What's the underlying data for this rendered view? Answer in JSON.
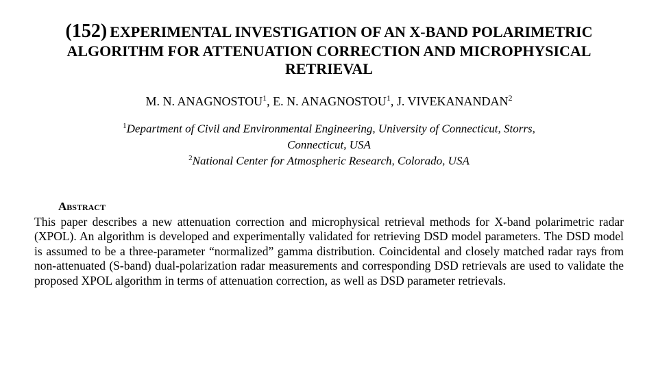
{
  "title": {
    "number": "(152)",
    "text": "EXPERIMENTAL INVESTIGATION OF AN X-BAND POLARIMETRIC ALGORITHM FOR ATTENUATION CORRECTION AND MICROPHYSICAL RETRIEVAL"
  },
  "authors": {
    "a1_init": "M. N. A",
    "a1_rest": "NAGNOSTOU",
    "a1_sup": "1",
    "sep1": ", ",
    "a2_init": "E. N. A",
    "a2_rest": "NAGNOSTOU",
    "a2_sup": "1",
    "sep2": ", ",
    "a3_init": "J. V",
    "a3_rest": "IVEKANANDAN",
    "a3_sup": "2"
  },
  "affiliations": {
    "l1_sup": "1",
    "l1": "Department of Civil and Environmental Engineering, University of Connecticut, Storrs,",
    "l2": "Connecticut, USA",
    "l3_sup": "2",
    "l3": "National Center for Atmospheric Research, Colorado, USA"
  },
  "abstract": {
    "heading": "Abstract",
    "body": "This paper describes a new attenuation correction and microphysical retrieval methods for X-band polarimetric radar (XPOL). An algorithm is developed and experimentally validated for retrieving DSD model parameters. The DSD model is assumed to be a three-parameter “normalized” gamma distribution. Coincidental and closely matched radar rays from non-attenuated (S-band) dual-polarization radar measurements and corresponding DSD retrievals are used to validate the proposed XPOL algorithm in terms of attenuation correction, as well as DSD parameter retrievals."
  }
}
